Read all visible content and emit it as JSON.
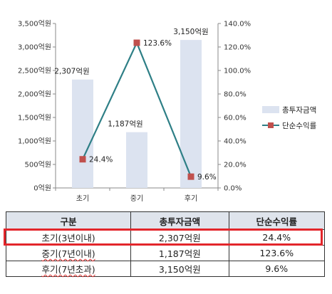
{
  "chart_data": {
    "type": "bar",
    "categories": [
      "초기",
      "중기",
      "후기"
    ],
    "series": [
      {
        "name": "총투자금액",
        "type": "bar",
        "axis": "left",
        "color": "#dce3f0",
        "values": [
          2307,
          1187,
          3150
        ],
        "labels": [
          "2,307억원",
          "1,187억원",
          "3,150억원"
        ]
      },
      {
        "name": "단순수익률",
        "type": "line",
        "axis": "right",
        "color": "#2e7f86",
        "marker_color": "#c0504d",
        "values": [
          24.4,
          123.6,
          9.6
        ],
        "labels": [
          "24.4%",
          "123.6%",
          "9.6%"
        ]
      }
    ],
    "y_left": {
      "min": 0,
      "max": 3500,
      "ticks": [
        "0억원",
        "500억원",
        "1,000억원",
        "1,500억원",
        "2,000억원",
        "2,500억원",
        "3,000억원",
        "3,500억원"
      ]
    },
    "y_right": {
      "min": 0,
      "max": 140,
      "ticks": [
        "0.0%",
        "20.0%",
        "40.0%",
        "60.0%",
        "80.0%",
        "100.0%",
        "120.0%",
        "140.0%"
      ]
    },
    "legend_position": "right"
  },
  "table": {
    "headers": [
      "구분",
      "총투자금액",
      "단순수익률"
    ],
    "rows": [
      {
        "phase": "초기(3년이내)",
        "amount": "2,307억원",
        "rate": "24.4%"
      },
      {
        "phase": "중기(7년이내)",
        "amount": "1,187억원",
        "rate": "123.6%"
      },
      {
        "phase": "후기(7년초과)",
        "amount": "3,150억원",
        "rate": "9.6%"
      }
    ]
  }
}
